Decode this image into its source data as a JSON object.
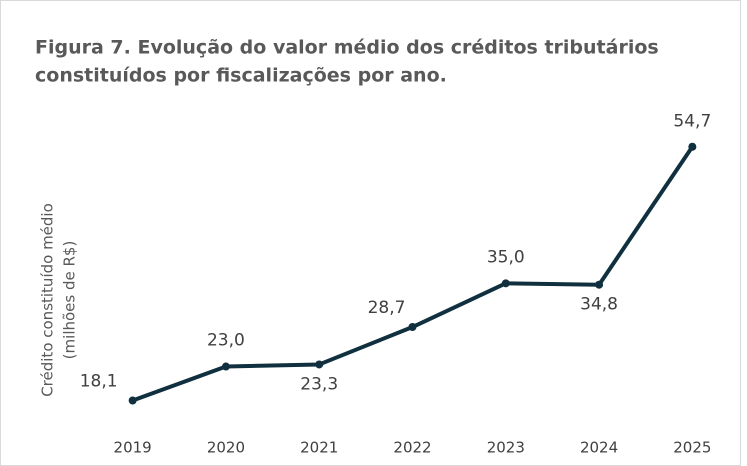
{
  "chart_data": {
    "type": "line",
    "title_lines": [
      "Figura 7. Evolução do valor médio dos créditos tributários",
      "constituídos por fiscalizações por ano."
    ],
    "y_axis_label_lines": [
      "Crédito constituído médio",
      "(milhões de R$)"
    ],
    "categories": [
      "2019",
      "2020",
      "2021",
      "2022",
      "2023",
      "2024",
      "2025"
    ],
    "series": [
      {
        "name": "Crédito constituído médio",
        "color": "#10303f",
        "values": [
          18.1,
          23.0,
          23.3,
          28.7,
          35.0,
          34.8,
          54.7
        ],
        "value_labels": [
          "18,1",
          "23,0",
          "23,3",
          "28,7",
          "35,0",
          "34,8",
          "54,7"
        ]
      }
    ],
    "ylim": [
      15,
      60
    ],
    "grid": false,
    "legend": false
  }
}
